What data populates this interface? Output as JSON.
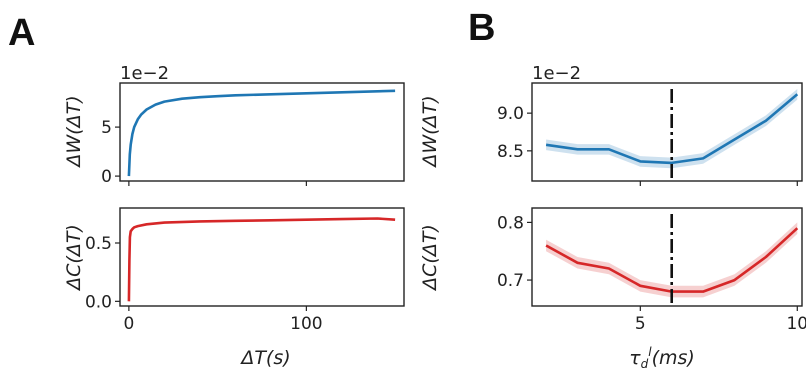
{
  "panels": [
    {
      "letter": "A"
    },
    {
      "letter": "B"
    }
  ],
  "colors": {
    "blue": "#1f77b4",
    "red": "#d62728",
    "axis": "#222222"
  },
  "chart_data": [
    {
      "id": "A-top",
      "type": "line",
      "panel": "A",
      "xlabel": "",
      "ylabel": "ΔW(ΔT)",
      "scale_note": "1e−2",
      "xlim": [
        -5,
        155
      ],
      "ylim": [
        -0.5,
        9.5
      ],
      "xticks": [
        0,
        100
      ],
      "xtick_labels": [
        "",
        ""
      ],
      "yticks": [
        0,
        5
      ],
      "ytick_labels": [
        "0",
        "5"
      ],
      "series": [
        {
          "color": "#1f77b4",
          "x": [
            0,
            0.5,
            1,
            2,
            3,
            5,
            7,
            10,
            15,
            20,
            30,
            40,
            50,
            60,
            80,
            100,
            120,
            140,
            150
          ],
          "y": [
            0,
            2.2,
            3.2,
            4.3,
            5.0,
            5.8,
            6.3,
            6.8,
            7.3,
            7.6,
            7.9,
            8.05,
            8.15,
            8.25,
            8.35,
            8.45,
            8.55,
            8.65,
            8.7
          ]
        }
      ]
    },
    {
      "id": "A-bottom",
      "type": "line",
      "panel": "A",
      "xlabel": "ΔT(s)",
      "ylabel": "ΔC(ΔT)",
      "xlim": [
        -5,
        155
      ],
      "ylim": [
        -0.04,
        0.8
      ],
      "xticks": [
        0,
        100
      ],
      "xtick_labels": [
        "0",
        "100"
      ],
      "yticks": [
        0,
        0.5
      ],
      "ytick_labels": [
        "0.0",
        "0.5"
      ],
      "series": [
        {
          "color": "#d62728",
          "x": [
            0,
            0.3,
            0.6,
            1,
            2,
            3,
            5,
            10,
            20,
            40,
            60,
            80,
            100,
            120,
            140,
            150
          ],
          "y": [
            0,
            0.35,
            0.55,
            0.6,
            0.62,
            0.635,
            0.645,
            0.66,
            0.675,
            0.685,
            0.69,
            0.695,
            0.7,
            0.705,
            0.71,
            0.7
          ]
        }
      ]
    },
    {
      "id": "B-top",
      "type": "line",
      "panel": "B",
      "xlabel": "",
      "ylabel": "ΔW(ΔT)",
      "scale_note": "1e−2",
      "xlim": [
        1.55,
        10.15
      ],
      "ylim": [
        8.1,
        9.4
      ],
      "xticks": [
        5,
        10
      ],
      "xtick_labels": [
        "",
        ""
      ],
      "yticks": [
        8.5,
        9.0
      ],
      "ytick_labels": [
        "8.5",
        "9.0"
      ],
      "vline": 6,
      "series": [
        {
          "color": "#1f77b4",
          "x": [
            2,
            3,
            4,
            5,
            6,
            7,
            8,
            9,
            10
          ],
          "y": [
            8.58,
            8.52,
            8.52,
            8.36,
            8.34,
            8.4,
            8.65,
            8.9,
            9.25
          ],
          "band": 0.07
        }
      ]
    },
    {
      "id": "B-bottom",
      "type": "line",
      "panel": "B",
      "xlabel": "τd'(ms)",
      "ylabel": "ΔC(ΔT)",
      "xlim": [
        1.55,
        10.15
      ],
      "ylim": [
        0.655,
        0.825
      ],
      "xticks": [
        5,
        10
      ],
      "xtick_labels": [
        "5",
        "10"
      ],
      "yticks": [
        0.7,
        0.8
      ],
      "ytick_labels": [
        "0.7",
        "0.8"
      ],
      "vline": 6,
      "series": [
        {
          "color": "#d62728",
          "x": [
            2,
            3,
            4,
            5,
            6,
            7,
            8,
            9,
            10
          ],
          "y": [
            0.76,
            0.73,
            0.72,
            0.69,
            0.68,
            0.68,
            0.7,
            0.74,
            0.79
          ],
          "band": 0.01
        }
      ]
    }
  ]
}
